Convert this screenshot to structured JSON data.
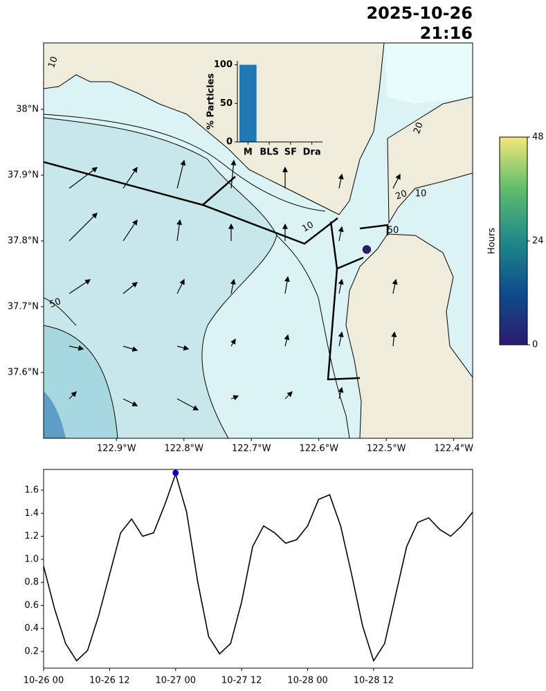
{
  "chart_data": [
    {
      "type": "map",
      "title": [
        "2025-10-26",
        "21:16"
      ],
      "xlim": [
        -123.008,
        -122.372
      ],
      "ylim": [
        37.5,
        38.101
      ],
      "xticks": [
        {
          "value": -122.9,
          "label": "122.9°W"
        },
        {
          "value": -122.8,
          "label": "122.8°W"
        },
        {
          "value": -122.7,
          "label": "122.7°W"
        },
        {
          "value": -122.6,
          "label": "122.6°W"
        },
        {
          "value": -122.5,
          "label": "122.5°W"
        },
        {
          "value": -122.4,
          "label": "122.4°W"
        }
      ],
      "yticks": [
        {
          "value": 37.6,
          "label": "37.6°N"
        },
        {
          "value": 37.7,
          "label": "37.7°N"
        },
        {
          "value": 37.8,
          "label": "37.8°N"
        },
        {
          "value": 37.9,
          "label": "37.9°N"
        },
        {
          "value": 38.0,
          "label": "38°N"
        }
      ],
      "annotations": [
        "10",
        "10",
        "50",
        "50",
        "20",
        "10",
        "20"
      ],
      "quiver": {
        "x": [
          -122.97,
          -122.89,
          -122.81,
          -122.73,
          -122.65,
          -122.57,
          -122.49
        ],
        "y": [
          37.56,
          37.64,
          37.72,
          37.8,
          37.88
        ],
        "u": [
          [
            0.05,
            0.1,
            0.15,
            0.05,
            0.05,
            0.02,
            null
          ],
          [
            0.1,
            0.1,
            0.08,
            0.03,
            0.02,
            0.02,
            0.01
          ],
          [
            0.15,
            0.1,
            0.05,
            0.02,
            0.02,
            0.02,
            0.02
          ],
          [
            0.2,
            0.1,
            0.02,
            0.0,
            0.0,
            0.02,
            null
          ],
          [
            0.2,
            0.1,
            0.05,
            0.02,
            0.0,
            0.02,
            0.05
          ]
        ],
        "v": [
          [
            0.05,
            -0.05,
            -0.08,
            0.02,
            0.05,
            0.08,
            null
          ],
          [
            -0.02,
            -0.03,
            -0.02,
            0.05,
            0.08,
            0.1,
            0.1
          ],
          [
            0.1,
            0.08,
            0.1,
            0.1,
            0.12,
            0.1,
            0.1
          ],
          [
            0.2,
            0.15,
            0.15,
            0.12,
            0.12,
            0.1,
            null
          ],
          [
            0.15,
            0.15,
            0.2,
            0.2,
            0.15,
            0.1,
            0.1
          ]
        ]
      },
      "particles": {
        "x": [
          -122.529
        ],
        "y": [
          37.787
        ],
        "values": [
          0
        ]
      }
    },
    {
      "type": "bar",
      "ylabel": "% Particles",
      "categories": [
        "M",
        "BLS",
        "SF",
        "Dra"
      ],
      "values": [
        100,
        0,
        0,
        0
      ],
      "color": "#1f77b4",
      "ylim": [
        0,
        105
      ],
      "yticks": [
        0,
        50,
        100
      ]
    },
    {
      "type": "colorbar",
      "label": "Hours",
      "lim": [
        0,
        48
      ],
      "ticks": [
        0,
        24,
        48
      ],
      "colormap": [
        "#2c1b6e",
        "#0f4c8c",
        "#20898a",
        "#5dbd6b",
        "#f3e77a"
      ]
    },
    {
      "type": "line",
      "x": [
        "10-26 00",
        "10-26 02",
        "10-26 04",
        "10-26 06",
        "10-26 08",
        "10-26 10",
        "10-26 12",
        "10-26 14",
        "10-26 16",
        "10-26 18",
        "10-26 20",
        "10-26 22",
        "10-27 00",
        "10-27 02",
        "10-27 04",
        "10-27 06",
        "10-27 08",
        "10-27 10",
        "10-27 12",
        "10-27 14",
        "10-27 16",
        "10-27 18",
        "10-27 20",
        "10-27 22",
        "10-28 00",
        "10-28 02",
        "10-28 04",
        "10-28 06",
        "10-28 08",
        "10-28 10",
        "10-28 12",
        "10-28 14",
        "10-28 16",
        "10-28 18",
        "10-28 20",
        "10-28 22",
        "10-29 00",
        "10-29 02",
        "10-29 04",
        "10-29 06"
      ],
      "values": [
        0.94,
        0.57,
        0.27,
        0.12,
        0.21,
        0.51,
        0.87,
        1.23,
        1.35,
        1.2,
        1.23,
        1.47,
        1.74,
        1.41,
        0.81,
        0.33,
        0.18,
        0.27,
        0.63,
        1.11,
        1.29,
        1.23,
        1.14,
        1.17,
        1.29,
        1.52,
        1.56,
        1.29,
        0.87,
        0.42,
        0.12,
        0.27,
        0.69,
        1.11,
        1.32,
        1.36,
        1.26,
        1.2,
        1.29,
        1.41
      ],
      "color": "#000000",
      "marker": {
        "x": "10-27 00",
        "y": 1.75,
        "color": "#0000cc"
      },
      "xlim": [
        "10-26 00",
        "10-29 06"
      ],
      "xticks": [
        "10-26 00",
        "10-26 12",
        "10-27 00",
        "10-27 12",
        "10-28 00",
        "10-28 12"
      ],
      "ylim": [
        0.056,
        1.78
      ],
      "yticks": [
        0.2,
        0.4,
        0.6,
        0.8,
        {
          "value": 1,
          "label": "1.0"
        },
        1.2,
        1.4,
        1.6
      ]
    }
  ]
}
